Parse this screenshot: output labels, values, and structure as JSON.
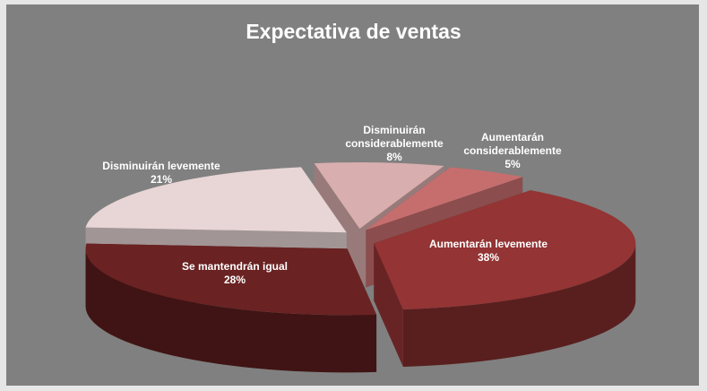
{
  "chart_data": {
    "type": "pie3d",
    "title": "Expectativa de ventas",
    "categories": [
      "Disminuirán considerablemente",
      "Aumentarán considerablemente",
      "Aumentarán levemente",
      "Se mantendrán igual",
      "Disminuirán levemente"
    ],
    "values": [
      8,
      5,
      38,
      28,
      21
    ],
    "value_labels": [
      "8%",
      "5%",
      "38%",
      "28%",
      "21%"
    ],
    "colors": [
      "#d9aeae",
      "#c66e6e",
      "#943434",
      "#6a2222",
      "#e8d5d5"
    ]
  }
}
